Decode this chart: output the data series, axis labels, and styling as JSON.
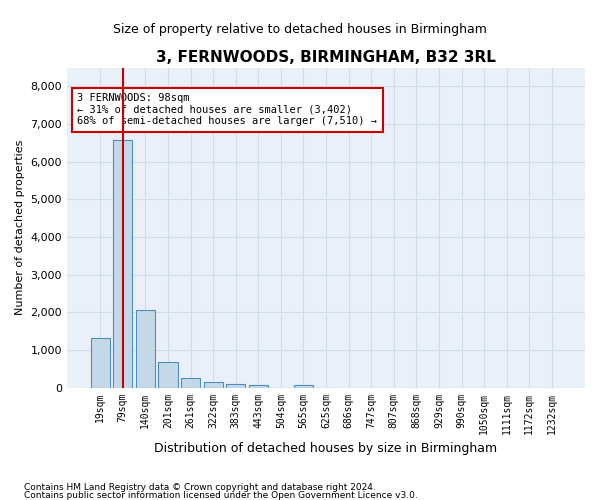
{
  "title": "3, FERNWOODS, BIRMINGHAM, B32 3RL",
  "subtitle": "Size of property relative to detached houses in Birmingham",
  "xlabel": "Distribution of detached houses by size in Birmingham",
  "ylabel": "Number of detached properties",
  "footnote1": "Contains HM Land Registry data © Crown copyright and database right 2024.",
  "footnote2": "Contains public sector information licensed under the Open Government Licence v3.0.",
  "annotation_line1": "3 FERNWOODS: 98sqm",
  "annotation_line2": "← 31% of detached houses are smaller (3,402)",
  "annotation_line3": "68% of semi-detached houses are larger (7,510) →",
  "property_size_sqm": 98,
  "bar_categories": [
    "19sqm",
    "79sqm",
    "140sqm",
    "201sqm",
    "261sqm",
    "322sqm",
    "383sqm",
    "443sqm",
    "504sqm",
    "565sqm",
    "625sqm",
    "686sqm",
    "747sqm",
    "807sqm",
    "868sqm",
    "929sqm",
    "990sqm",
    "1050sqm",
    "1111sqm",
    "1172sqm",
    "1232sqm"
  ],
  "bar_values": [
    1310,
    6570,
    2060,
    680,
    270,
    140,
    90,
    60,
    0,
    75,
    0,
    0,
    0,
    0,
    0,
    0,
    0,
    0,
    0,
    0,
    0
  ],
  "bar_color": "#c5d8e8",
  "bar_edge_color": "#4a90c4",
  "vline_color": "#cc0000",
  "vline_x": 1,
  "ylim": [
    0,
    8500
  ],
  "yticks": [
    0,
    1000,
    2000,
    3000,
    4000,
    5000,
    6000,
    7000,
    8000
  ],
  "grid_color": "#d0dce8",
  "background_color": "#eaf0f8",
  "box_color": "#ffffff",
  "annotation_box_edge": "#cc0000"
}
